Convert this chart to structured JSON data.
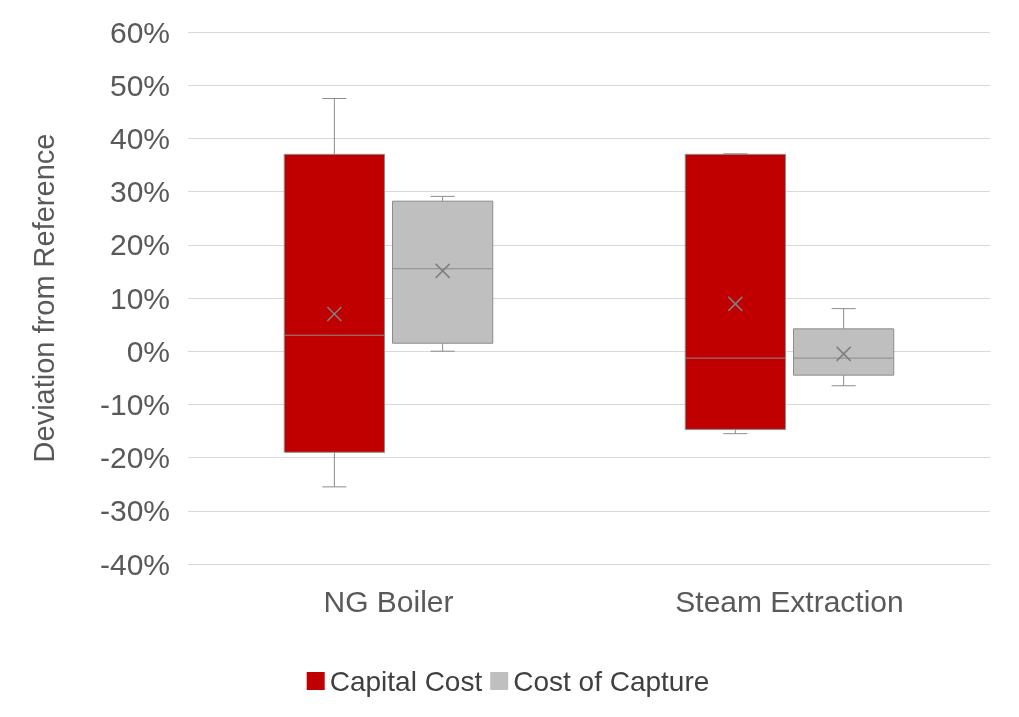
{
  "chart_data": {
    "type": "box",
    "ylabel": "Deviation from Reference",
    "categories": [
      "NG Boiler",
      "Steam Extraction"
    ],
    "series": [
      {
        "name": "Capital Cost",
        "color": "#c00000",
        "boxes": [
          {
            "low": -25.5,
            "q1": -19,
            "median": 3,
            "q3": 37,
            "high": 47.5,
            "mean": 7
          },
          {
            "low": -15.5,
            "q1": -14.7,
            "median": -1.3,
            "q3": 37,
            "high": 37.1,
            "mean": 8.9
          }
        ]
      },
      {
        "name": "Cost of Capture",
        "color": "#bfbfbf",
        "boxes": [
          {
            "low": 0,
            "q1": 1.5,
            "median": 15.5,
            "q3": 28.2,
            "high": 29.1,
            "mean": 15.1
          },
          {
            "low": -6.5,
            "q1": -4.5,
            "median": -1.3,
            "q3": 4.2,
            "high": 8,
            "mean": -0.5
          }
        ]
      }
    ],
    "ylim": [
      -40,
      60
    ],
    "yticks": [
      {
        "value": -40,
        "label": "-40%"
      },
      {
        "value": -30,
        "label": "-30%"
      },
      {
        "value": -20,
        "label": "-20%"
      },
      {
        "value": -10,
        "label": "-10%"
      },
      {
        "value": 0,
        "label": "0%"
      },
      {
        "value": 10,
        "label": "10%"
      },
      {
        "value": 20,
        "label": "20%"
      },
      {
        "value": 30,
        "label": "30%"
      },
      {
        "value": 40,
        "label": "40%"
      },
      {
        "value": 50,
        "label": "50%"
      },
      {
        "value": 60,
        "label": "60%"
      }
    ],
    "grid": "y",
    "legend": "bottom",
    "marker": "cross"
  }
}
